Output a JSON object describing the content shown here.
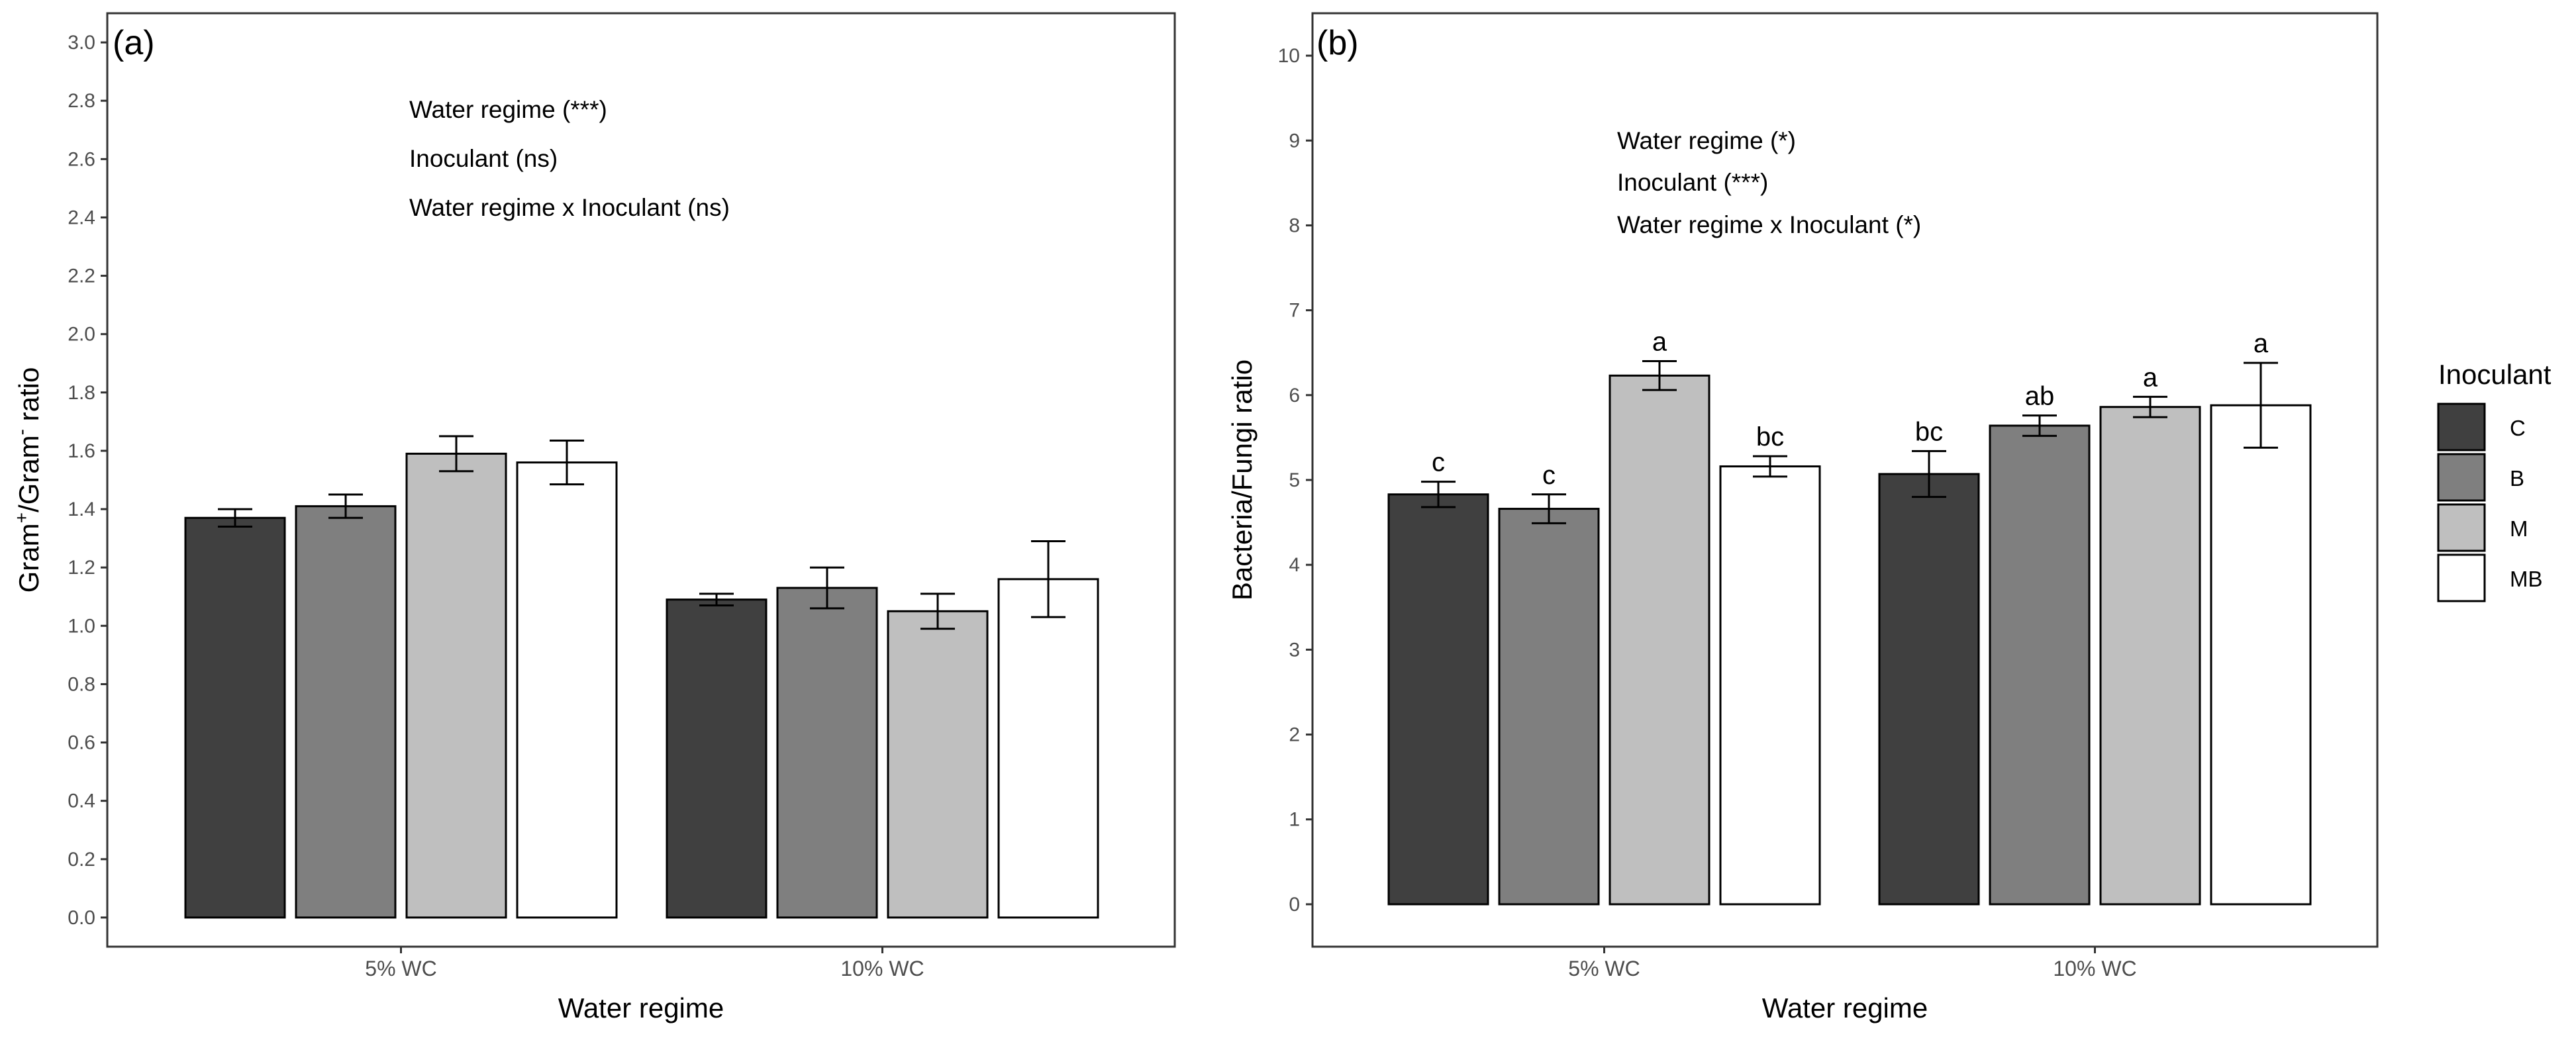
{
  "chart_data": [
    {
      "type": "bar",
      "panel_label": "(a)",
      "xlabel": "Water regime",
      "ylabel_main": "Gram",
      "ylabel_sup1": "+",
      "ylabel_mid": "/Gram",
      "ylabel_sup2": "-",
      "ylabel_end": " ratio",
      "ylim": [
        -0.1,
        3.1
      ],
      "yticks": [
        "0.0",
        "0.2",
        "0.4",
        "0.6",
        "0.8",
        "1.0",
        "1.2",
        "1.4",
        "1.6",
        "1.8",
        "2.0",
        "2.2",
        "2.4",
        "2.6",
        "2.8",
        "3.0"
      ],
      "categories": [
        "5% WC",
        "10% WC"
      ],
      "annotations": [
        "Water regime (***)",
        "Inoculant (ns)",
        "Water regime x Inoculant (ns)"
      ],
      "series": [
        {
          "name": "C",
          "values": [
            1.37,
            1.09
          ],
          "errors": [
            0.03,
            0.02
          ],
          "letters": [
            "",
            ""
          ]
        },
        {
          "name": "B",
          "values": [
            1.41,
            1.13
          ],
          "errors": [
            0.04,
            0.07
          ],
          "letters": [
            "",
            ""
          ]
        },
        {
          "name": "M",
          "values": [
            1.59,
            1.05
          ],
          "errors": [
            0.06,
            0.06
          ],
          "letters": [
            "",
            ""
          ]
        },
        {
          "name": "MB",
          "values": [
            1.56,
            1.16
          ],
          "errors": [
            0.075,
            0.13
          ],
          "letters": [
            "",
            ""
          ]
        }
      ],
      "grid": false,
      "legend": false
    },
    {
      "type": "bar",
      "panel_label": "(b)",
      "xlabel": "Water regime",
      "ylabel_main": "Bacteria/Fungi ratio",
      "ylim": [
        -0.5,
        10.5
      ],
      "yticks": [
        "0",
        "1",
        "2",
        "3",
        "4",
        "5",
        "6",
        "7",
        "8",
        "9",
        "10"
      ],
      "categories": [
        "5% WC",
        "10% WC"
      ],
      "annotations": [
        "Water regime (*)",
        "Inoculant (***)",
        "Water regime x Inoculant (*)"
      ],
      "series": [
        {
          "name": "C",
          "values": [
            4.83,
            5.07
          ],
          "errors": [
            0.15,
            0.27
          ],
          "letters": [
            "c",
            "bc"
          ]
        },
        {
          "name": "B",
          "values": [
            4.66,
            5.64
          ],
          "errors": [
            0.17,
            0.12
          ],
          "letters": [
            "c",
            "ab"
          ]
        },
        {
          "name": "M",
          "values": [
            6.23,
            5.86
          ],
          "errors": [
            0.17,
            0.12
          ],
          "letters": [
            "a",
            "a"
          ]
        },
        {
          "name": "MB",
          "values": [
            5.16,
            5.88
          ],
          "errors": [
            0.12,
            0.5
          ],
          "letters": [
            "bc",
            "a"
          ]
        }
      ],
      "grid": false,
      "legend": true
    }
  ],
  "legend": {
    "title": "Inoculant",
    "placement": "right",
    "items": [
      {
        "name": "C",
        "color": "#404040"
      },
      {
        "name": "B",
        "color": "#7f7f7f"
      },
      {
        "name": "M",
        "color": "#bfbfbf"
      },
      {
        "name": "MB",
        "color": "#ffffff"
      }
    ]
  },
  "colors": {
    "C": "#404040",
    "B": "#7f7f7f",
    "M": "#bfbfbf",
    "MB": "#ffffff",
    "outline": "#000000",
    "frame": "#333333",
    "text": "#4d4d4d"
  }
}
